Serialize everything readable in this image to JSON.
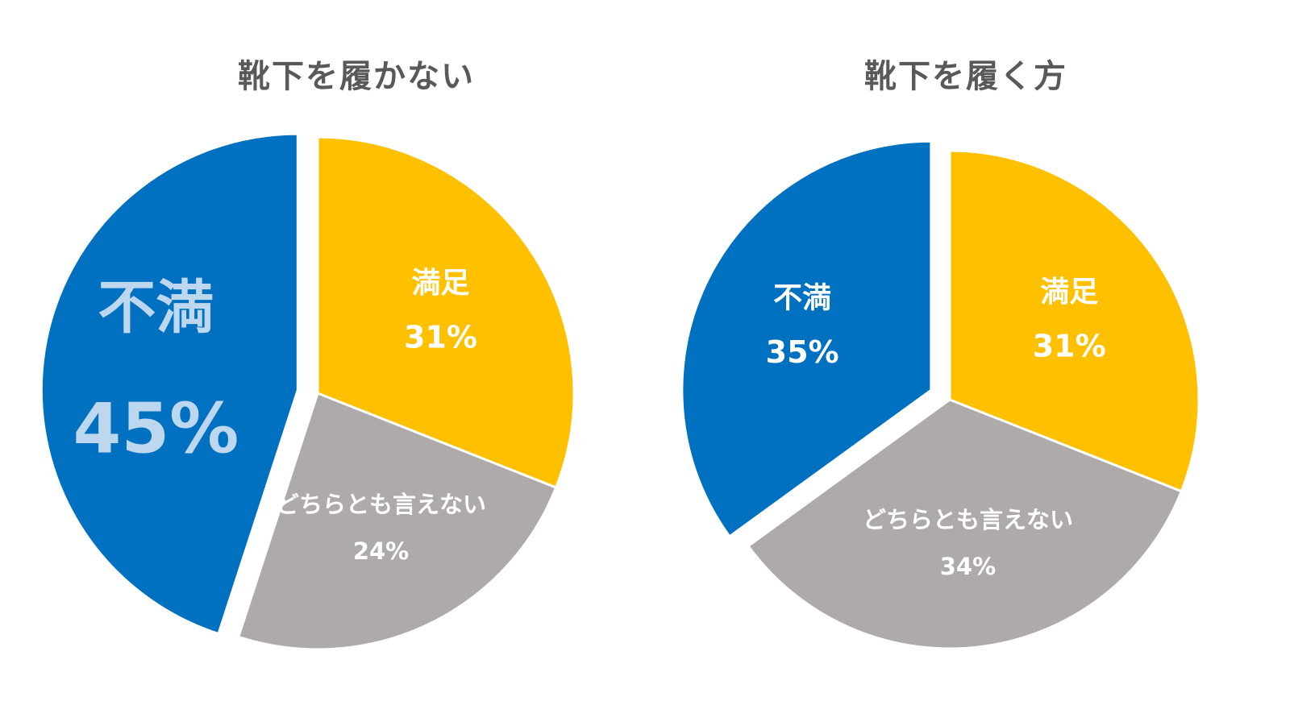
{
  "chart_data": [
    {
      "type": "pie",
      "title": "靴下を履かない",
      "slices": [
        {
          "label": "満足",
          "value": 31,
          "value_label": "31%",
          "color": "#FFC000"
        },
        {
          "label": "どちらとも言えない",
          "value": 24,
          "value_label": "24%",
          "color": "#AEAAAA"
        },
        {
          "label": "不満",
          "value": 45,
          "value_label": "45%",
          "color": "#0070C0",
          "exploded": true,
          "emphasized": true
        }
      ]
    },
    {
      "type": "pie",
      "title": "靴下を履く方",
      "slices": [
        {
          "label": "満足",
          "value": 31,
          "value_label": "31%",
          "color": "#FFC000"
        },
        {
          "label": "どちらとも言えない",
          "value": 34,
          "value_label": "34%",
          "color": "#AEAAAA"
        },
        {
          "label": "不満",
          "value": 35,
          "value_label": "35%",
          "color": "#0070C0",
          "exploded": true
        }
      ]
    }
  ]
}
